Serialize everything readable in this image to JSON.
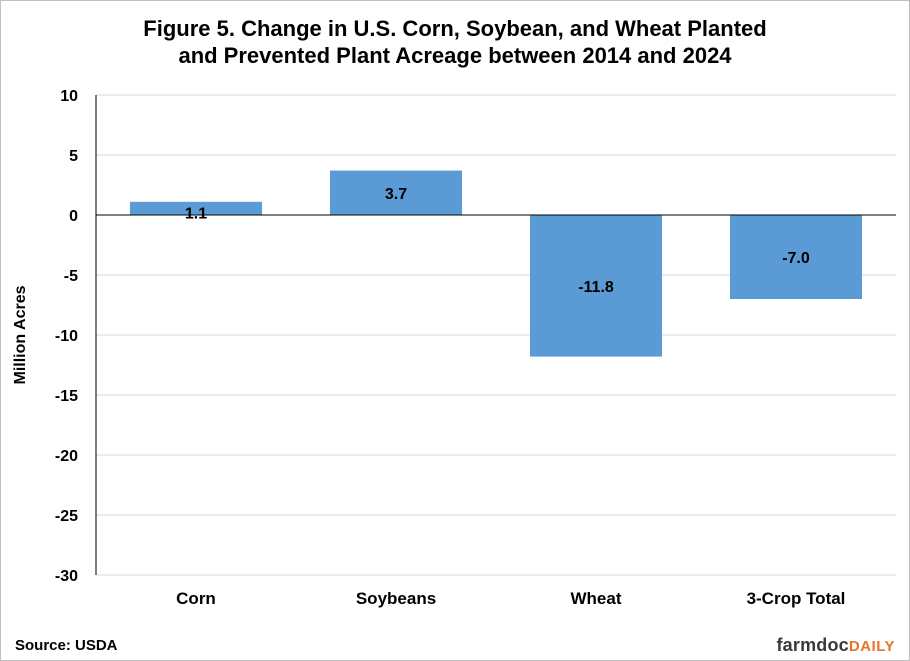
{
  "chart_data": {
    "type": "bar",
    "title_lines": [
      "Figure 5. Change in U.S. Corn, Soybean, and Wheat Planted",
      "and Prevented Plant Acreage between 2014 and 2024"
    ],
    "categories": [
      "Corn",
      "Soybeans",
      "Wheat",
      "3-Crop Total"
    ],
    "values": [
      1.1,
      3.7,
      -11.8,
      -7.0
    ],
    "value_labels": [
      "1.1",
      "3.7",
      "-11.8",
      "-7.0"
    ],
    "ylabel": "Million Acres",
    "xlabel": "",
    "ylim": [
      -30,
      10
    ],
    "yticks": [
      10,
      5,
      0,
      -5,
      -10,
      -15,
      -20,
      -25,
      -30
    ],
    "grid": true,
    "bar_color": "#5b9bd5"
  },
  "footer": {
    "source": "Source: USDA",
    "logo_main": "farmdoc",
    "logo_accent": "DAILY"
  }
}
